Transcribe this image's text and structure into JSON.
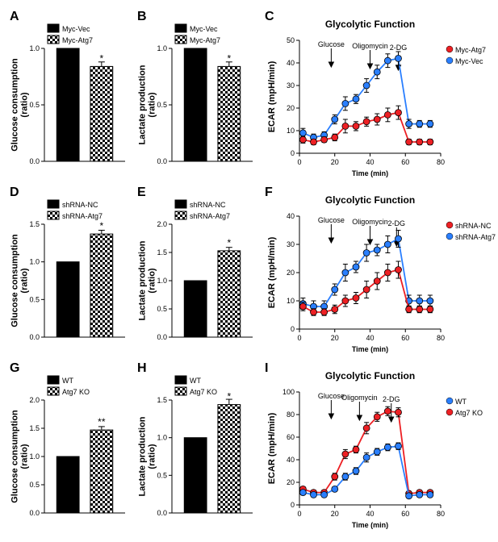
{
  "colors": {
    "black": "#000000",
    "red": "#ed2024",
    "blue": "#2a7fff",
    "checker_dark": "#2a2a2a",
    "checker_light": "#ffffff"
  },
  "rows": [
    {
      "bar1": {
        "label": "A",
        "ylabel": "Glucose consumption\n(ratio)",
        "legend": [
          "Myc-Vec",
          "Myc-Atg7"
        ],
        "bars": [
          {
            "value": 1.0,
            "err": 0.0,
            "fill": "solid"
          },
          {
            "value": 0.84,
            "err": 0.04,
            "fill": "checker"
          }
        ],
        "ymax": 1.0,
        "ytick": 0.5,
        "sig": "*",
        "sigOn": 1
      },
      "bar2": {
        "label": "B",
        "ylabel": "Lactate production\n(ratio)",
        "legend": [
          "Myc-Vec",
          "Myc-Atg7"
        ],
        "bars": [
          {
            "value": 1.0,
            "err": 0.0,
            "fill": "solid"
          },
          {
            "value": 0.84,
            "err": 0.04,
            "fill": "checker"
          }
        ],
        "ymax": 1.0,
        "ytick": 0.5,
        "sig": "*",
        "sigOn": 1
      },
      "line": {
        "label": "C",
        "title": "Glycolytic Function",
        "ylabel": "ECAR (mpH/min)",
        "xlabel": "Time (min)",
        "legend": [
          {
            "name": "Myc-Atg7",
            "color": "#ed2024"
          },
          {
            "name": "Myc-Vec",
            "color": "#2a7fff"
          }
        ],
        "xlim": [
          0,
          80
        ],
        "xtick": 20,
        "ylim": [
          0,
          50
        ],
        "ytick": 10,
        "injections": [
          {
            "x": 18,
            "label": "Glucose"
          },
          {
            "x": 40,
            "label": "Oligomycin"
          },
          {
            "x": 56,
            "label": "2-DG"
          }
        ],
        "series": [
          {
            "color": "#2a7fff",
            "x": [
              2,
              8,
              14,
              20,
              26,
              32,
              38,
              44,
              50,
              56,
              62,
              68,
              74
            ],
            "y": [
              9,
              7,
              8,
              15,
              22,
              24,
              30,
              36,
              41,
              42,
              13,
              13,
              13
            ],
            "err": [
              2,
              1.5,
              1.5,
              2,
              3,
              2,
              3,
              3,
              3,
              3,
              2,
              1.5,
              1.5
            ]
          },
          {
            "color": "#ed2024",
            "x": [
              2,
              8,
              14,
              20,
              26,
              32,
              38,
              44,
              50,
              56,
              62,
              68,
              74
            ],
            "y": [
              6,
              5,
              6,
              7,
              12,
              12,
              14,
              15,
              17,
              18,
              5,
              5,
              5
            ],
            "err": [
              1.5,
              1.2,
              1.2,
              1.5,
              3,
              2,
              2,
              2.5,
              3,
              3,
              1.2,
              1.2,
              1.2
            ]
          }
        ]
      }
    },
    {
      "bar1": {
        "label": "D",
        "ylabel": "Glucose consumption\n(ratio)",
        "legend": [
          "shRNA-NC",
          "shRNA-Atg7"
        ],
        "bars": [
          {
            "value": 1.0,
            "err": 0.0,
            "fill": "solid"
          },
          {
            "value": 1.37,
            "err": 0.05,
            "fill": "checker"
          }
        ],
        "ymax": 1.5,
        "ytick": 0.5,
        "sig": "*",
        "sigOn": 1
      },
      "bar2": {
        "label": "E",
        "ylabel": "Lactate production\n(ratio)",
        "legend": [
          "shRNA-NC",
          "shRNA-Atg7"
        ],
        "bars": [
          {
            "value": 1.0,
            "err": 0.0,
            "fill": "solid"
          },
          {
            "value": 1.53,
            "err": 0.06,
            "fill": "checker"
          }
        ],
        "ymax": 2.0,
        "ytick": 0.5,
        "sig": "*",
        "sigOn": 1
      },
      "line": {
        "label": "F",
        "title": "Glycolytic Function",
        "ylabel": "ECAR (mpH/min)",
        "xlabel": "Time (min)",
        "legend": [
          {
            "name": "shRNA-NC",
            "color": "#ed2024"
          },
          {
            "name": "shRNA-Atg7",
            "color": "#2a7fff"
          }
        ],
        "xlim": [
          0,
          80
        ],
        "xtick": 20,
        "ylim": [
          0,
          40
        ],
        "ytick": 10,
        "injections": [
          {
            "x": 18,
            "label": "Glucose"
          },
          {
            "x": 40,
            "label": "Oligomycin"
          },
          {
            "x": 55,
            "label": "2-DG"
          }
        ],
        "series": [
          {
            "color": "#2a7fff",
            "x": [
              2,
              8,
              14,
              20,
              26,
              32,
              38,
              44,
              50,
              56,
              62,
              68,
              74
            ],
            "y": [
              9,
              8,
              8,
              14,
              20,
              22,
              27,
              28,
              30,
              32,
              10,
              10,
              10
            ],
            "err": [
              2,
              2,
              2,
              2,
              3,
              2,
              3,
              2,
              3,
              3,
              2,
              2,
              2
            ]
          },
          {
            "color": "#ed2024",
            "x": [
              2,
              8,
              14,
              20,
              26,
              32,
              38,
              44,
              50,
              56,
              62,
              68,
              74
            ],
            "y": [
              8,
              6,
              6,
              7,
              10,
              11,
              14,
              17,
              20,
              21,
              7,
              7,
              7
            ],
            "err": [
              1.5,
              1.2,
              1.2,
              1.5,
              2,
              2,
              3,
              3,
              3,
              3,
              1.2,
              1.2,
              1.2
            ]
          }
        ]
      }
    },
    {
      "bar1": {
        "label": "G",
        "ylabel": "Glucose consumption\n(ratio)",
        "legend": [
          "WT",
          "Atg7 KO"
        ],
        "bars": [
          {
            "value": 1.0,
            "err": 0.0,
            "fill": "solid"
          },
          {
            "value": 1.47,
            "err": 0.06,
            "fill": "checker"
          }
        ],
        "ymax": 2.0,
        "ytick": 0.5,
        "sig": "**",
        "sigOn": 1
      },
      "bar2": {
        "label": "H",
        "ylabel": "Lactate production\n(ratio)",
        "legend": [
          "WT",
          "Atg7 KO"
        ],
        "bars": [
          {
            "value": 1.0,
            "err": 0.0,
            "fill": "solid"
          },
          {
            "value": 1.44,
            "err": 0.07,
            "fill": "checker"
          }
        ],
        "ymax": 1.5,
        "ytick": 0.5,
        "sig": "*",
        "sigOn": 1
      },
      "line": {
        "label": "I",
        "title": "Glycolytic Function",
        "ylabel": "ECAR (mpH/min)",
        "xlabel": "Time (min)",
        "legend": [
          {
            "name": "WT",
            "color": "#2a7fff"
          },
          {
            "name": "Atg7 KO",
            "color": "#ed2024"
          }
        ],
        "xlim": [
          0,
          80
        ],
        "xtick": 20,
        "ylim": [
          0,
          100
        ],
        "ytick": 20,
        "injections": [
          {
            "x": 18,
            "label": "Glucose"
          },
          {
            "x": 34,
            "label": "Oligomycin"
          },
          {
            "x": 52,
            "label": "2-DG"
          }
        ],
        "series": [
          {
            "color": "#ed2024",
            "x": [
              2,
              8,
              14,
              20,
              26,
              32,
              38,
              44,
              50,
              56,
              62,
              68,
              74
            ],
            "y": [
              14,
              11,
              11,
              25,
              45,
              49,
              68,
              78,
              83,
              82,
              10,
              11,
              11
            ],
            "err": [
              2,
              2,
              2,
              3,
              4,
              3,
              5,
              4,
              4,
              4,
              2,
              2,
              2
            ]
          },
          {
            "color": "#2a7fff",
            "x": [
              2,
              8,
              14,
              20,
              26,
              32,
              38,
              44,
              50,
              56,
              62,
              68,
              74
            ],
            "y": [
              11,
              9,
              9,
              14,
              25,
              30,
              42,
              47,
              51,
              52,
              8,
              9,
              9
            ],
            "err": [
              2,
              2,
              2,
              2,
              3,
              3,
              4,
              3,
              3,
              3,
              2,
              2,
              2
            ]
          }
        ]
      }
    }
  ]
}
